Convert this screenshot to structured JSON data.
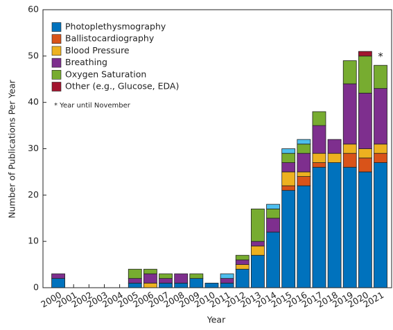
{
  "chart_data": {
    "type": "stacked_bar",
    "x_label": "Year",
    "y_label": "Number of Publications Per Year",
    "note": "* Year until November",
    "annotation": "*",
    "categories": [
      "2000",
      "2001",
      "2002",
      "2003",
      "2004",
      "2005",
      "2006",
      "2007",
      "2008",
      "2009",
      "2010",
      "2011",
      "2012",
      "2013",
      "2014",
      "2015",
      "2016",
      "2017",
      "2018",
      "2019",
      "2020",
      "2021"
    ],
    "series": [
      {
        "name": "Photoplethysmography",
        "color": "#0072BD",
        "values": [
          2,
          0,
          0,
          0,
          0,
          1,
          0,
          1,
          1,
          2,
          1,
          1,
          4,
          7,
          12,
          21,
          22,
          26,
          27,
          26,
          25,
          27
        ]
      },
      {
        "name": "Ballistocardiography",
        "color": "#D95319",
        "values": [
          0,
          0,
          0,
          0,
          0,
          0,
          0,
          0,
          0,
          0,
          0,
          0,
          0,
          0,
          0,
          1,
          2,
          1,
          0,
          3,
          3,
          2
        ]
      },
      {
        "name": "Blood Pressure",
        "color": "#EDB120",
        "values": [
          0,
          0,
          0,
          0,
          0,
          0,
          1,
          0,
          0,
          0,
          0,
          0,
          1,
          2,
          0,
          3,
          1,
          2,
          2,
          2,
          2,
          2
        ]
      },
      {
        "name": "Breathing",
        "color": "#7E2F8E",
        "values": [
          1,
          0,
          0,
          0,
          0,
          1,
          2,
          1,
          2,
          0,
          0,
          1,
          1,
          1,
          3,
          2,
          4,
          6,
          3,
          13,
          12,
          12
        ]
      },
      {
        "name": "Oxygen Saturation",
        "color": "#77AC30",
        "values": [
          0,
          0,
          0,
          0,
          0,
          2,
          1,
          1,
          0,
          1,
          0,
          0,
          1,
          7,
          2,
          2,
          2,
          3,
          0,
          5,
          8,
          5
        ]
      },
      {
        "name": "Other (e.g., Glucose, EDA)",
        "color": "#A2142F",
        "values": [
          0,
          0,
          0,
          0,
          0,
          0,
          0,
          0,
          0,
          0,
          0,
          0,
          0,
          0,
          0,
          0,
          0,
          0,
          0,
          0,
          1,
          0
        ]
      },
      {
        "color": "#4DBEEE",
        "values": [
          0,
          0,
          0,
          0,
          0,
          0,
          0,
          0,
          0,
          0,
          0,
          1,
          0,
          0,
          1,
          1,
          1,
          0,
          0,
          0,
          0,
          0
        ]
      }
    ],
    "ylim": [
      0,
      60
    ],
    "yticks": [
      0,
      10,
      20,
      30,
      40,
      50,
      60
    ],
    "legend": "upper left"
  }
}
